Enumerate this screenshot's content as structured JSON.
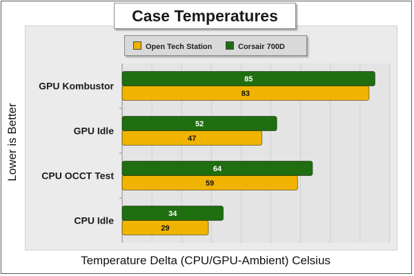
{
  "chart_data": {
    "type": "bar",
    "orientation": "horizontal",
    "title": "Case Temperatures",
    "xlabel": "Temperature Delta (CPU/GPU-Ambient) Celsius",
    "ylabel": "Lower is Better",
    "categories": [
      "GPU Kombustor",
      "GPU Idle",
      "CPU OCCT Test",
      "CPU Idle"
    ],
    "series": [
      {
        "name": "Corsair 700D",
        "color": "#1f6e0f",
        "label_color": "#ffffff",
        "values": [
          85,
          52,
          64,
          34
        ]
      },
      {
        "name": "Open Tech Station",
        "color": "#f0b400",
        "label_color": "#111111",
        "values": [
          83,
          47,
          59,
          29
        ]
      }
    ],
    "xlim": [
      0,
      90
    ],
    "grid": true,
    "legend_position": "top",
    "legend_order": [
      "Open Tech Station",
      "Corsair 700D"
    ]
  }
}
